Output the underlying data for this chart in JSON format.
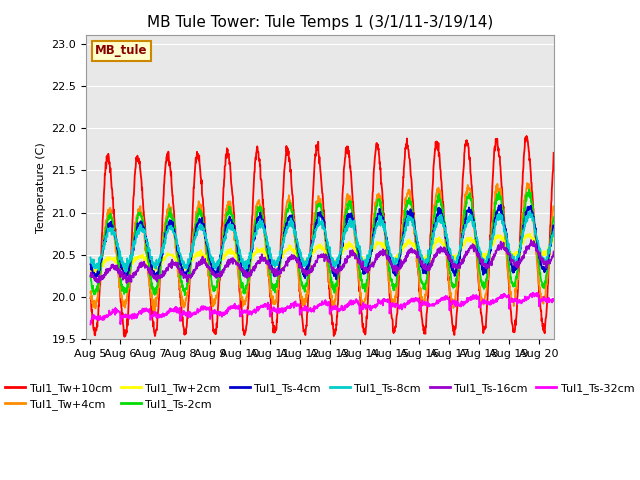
{
  "title": "MB Tule Tower: Tule Temps 1 (3/1/11-3/19/14)",
  "ylabel": "Temperature (C)",
  "xlabel": "",
  "ylim": [
    19.5,
    23.1
  ],
  "xlim_days": [
    -0.15,
    15.5
  ],
  "x_tick_labels": [
    "Aug 5",
    "Aug 6",
    "Aug 7",
    "Aug 8",
    "Aug 9",
    "Aug 10",
    "Aug 11",
    "Aug 12",
    "Aug 13",
    "Aug 14",
    "Aug 15",
    "Aug 16",
    "Aug 17",
    "Aug 18",
    "Aug 19",
    "Aug 20"
  ],
  "legend_entries": [
    {
      "label": "Tul1_Tw+10cm",
      "color": "#ff0000"
    },
    {
      "label": "Tul1_Tw+4cm",
      "color": "#ff8c00"
    },
    {
      "label": "Tul1_Tw+2cm",
      "color": "#ffff00"
    },
    {
      "label": "Tul1_Ts-2cm",
      "color": "#00dd00"
    },
    {
      "label": "Tul1_Ts-4cm",
      "color": "#0000cc"
    },
    {
      "label": "Tul1_Ts-8cm",
      "color": "#00cccc"
    },
    {
      "label": "Tul1_Ts-16cm",
      "color": "#9900cc"
    },
    {
      "label": "Tul1_Ts-32cm",
      "color": "#ff00ff"
    }
  ],
  "annotation_box": {
    "text": "MB_tule",
    "facecolor": "#ffffcc",
    "edgecolor": "#cc8800",
    "textcolor": "#880000"
  },
  "background_color": "#ffffff",
  "plot_bg_color": "#e8e8e8",
  "title_fontsize": 11,
  "axis_fontsize": 8,
  "legend_fontsize": 8,
  "yticks": [
    19.5,
    20.0,
    20.5,
    21.0,
    21.5,
    22.0,
    22.5,
    23.0
  ]
}
